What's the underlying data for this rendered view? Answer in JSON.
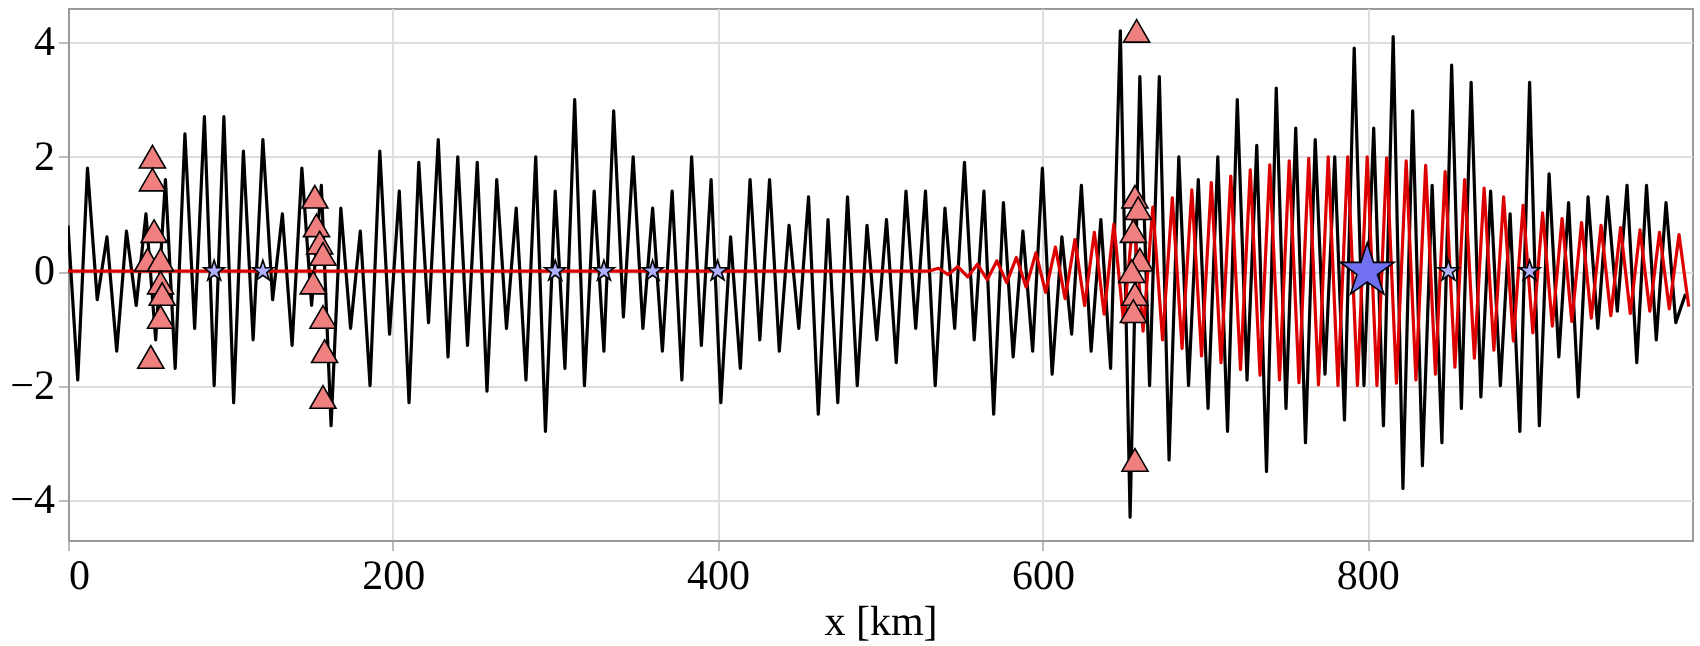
{
  "chart_data": {
    "type": "line",
    "xlabel": "x [km]",
    "xlim": [
      0,
      1000
    ],
    "ylim": [
      -4.7,
      4.6
    ],
    "xticks": [
      0,
      200,
      400,
      600,
      800
    ],
    "yticks": [
      -4,
      -2,
      0,
      2,
      4
    ],
    "grid": true,
    "line_style": "solid",
    "series": [
      {
        "color": "#000000",
        "x": [
          0,
          6,
          12,
          18,
          24,
          30,
          36,
          42,
          48,
          54,
          60,
          66,
          72,
          78,
          84,
          90,
          96,
          102,
          108,
          114,
          120,
          126,
          132,
          138,
          144,
          150,
          156,
          162,
          168,
          174,
          180,
          186,
          192,
          198,
          204,
          210,
          216,
          222,
          228,
          234,
          240,
          246,
          252,
          258,
          264,
          270,
          276,
          282,
          288,
          294,
          300,
          306,
          312,
          318,
          324,
          330,
          336,
          342,
          348,
          354,
          360,
          366,
          372,
          378,
          384,
          390,
          396,
          402,
          408,
          414,
          420,
          426,
          432,
          438,
          444,
          450,
          456,
          462,
          468,
          474,
          480,
          486,
          492,
          498,
          504,
          510,
          516,
          522,
          528,
          534,
          540,
          546,
          552,
          558,
          564,
          570,
          576,
          582,
          588,
          594,
          600,
          606,
          612,
          618,
          624,
          630,
          636,
          642,
          648,
          654,
          660,
          666,
          672,
          678,
          684,
          690,
          696,
          702,
          708,
          714,
          720,
          726,
          732,
          738,
          744,
          750,
          756,
          762,
          768,
          774,
          780,
          786,
          792,
          798,
          804,
          810,
          816,
          822,
          828,
          834,
          840,
          846,
          852,
          858,
          864,
          870,
          876,
          882,
          888,
          894,
          900,
          906,
          912,
          918,
          924,
          930,
          936,
          942,
          948,
          954,
          960,
          966,
          972,
          978,
          984,
          990,
          996
        ],
        "values": [
          0.8,
          -1.9,
          1.8,
          -0.5,
          0.6,
          -1.4,
          0.7,
          -0.6,
          1.0,
          -1.2,
          1.6,
          -1.7,
          2.4,
          -1.0,
          2.7,
          -2.0,
          2.7,
          -2.3,
          2.1,
          -1.2,
          2.3,
          -0.5,
          1.0,
          -1.3,
          1.8,
          -0.6,
          1.5,
          -2.7,
          1.1,
          -1.0,
          0.7,
          -2.0,
          2.1,
          -1.1,
          1.4,
          -2.3,
          1.9,
          -0.9,
          2.3,
          -1.5,
          2.0,
          -1.3,
          1.9,
          -2.1,
          1.6,
          -1.0,
          1.1,
          -1.9,
          2.0,
          -2.8,
          1.4,
          -1.7,
          3.0,
          -2.0,
          1.4,
          -1.4,
          2.8,
          -0.8,
          2.0,
          -1.0,
          1.1,
          -1.4,
          1.4,
          -1.9,
          2.0,
          -1.3,
          1.6,
          -2.3,
          0.6,
          -1.7,
          1.6,
          -1.2,
          1.6,
          -1.4,
          0.8,
          -1.0,
          1.3,
          -2.5,
          0.9,
          -2.3,
          1.3,
          -2.0,
          0.8,
          -1.2,
          0.9,
          -1.6,
          1.4,
          -1.0,
          1.4,
          -2.0,
          1.1,
          -1.0,
          1.9,
          -1.2,
          1.4,
          -2.5,
          1.2,
          -1.5,
          0.7,
          -1.4,
          1.8,
          -1.8,
          0.6,
          -1.1,
          1.5,
          -1.4,
          0.9,
          -1.7,
          4.2,
          -4.3,
          3.4,
          -2.0,
          3.4,
          -3.3,
          2.0,
          -2.0,
          1.6,
          -2.4,
          2.0,
          -2.8,
          3.0,
          -1.9,
          2.2,
          -3.5,
          3.2,
          -2.4,
          2.5,
          -3.0,
          2.3,
          -1.8,
          2.0,
          -2.6,
          3.9,
          -2.0,
          2.5,
          -2.7,
          4.1,
          -3.8,
          2.8,
          -3.4,
          1.5,
          -3.0,
          3.6,
          -2.4,
          3.3,
          -2.2,
          1.4,
          -2.0,
          1.0,
          -2.8,
          3.3,
          -2.7,
          1.7,
          -1.5,
          1.2,
          -2.2,
          1.3,
          -1.0,
          1.3,
          -0.7,
          1.5,
          -1.6,
          1.5,
          -1.2,
          1.2,
          -0.9,
          -0.4
        ]
      },
      {
        "color": "#dd0000",
        "x": [
          0,
          530,
          536,
          542,
          548,
          554,
          560,
          566,
          572,
          578,
          584,
          590,
          596,
          602,
          608,
          614,
          620,
          626,
          632,
          638,
          644,
          650,
          656,
          662,
          668,
          674,
          680,
          686,
          692,
          698,
          704,
          710,
          716,
          722,
          728,
          734,
          740,
          746,
          752,
          758,
          764,
          770,
          776,
          782,
          788,
          794,
          800,
          806,
          812,
          818,
          824,
          830,
          836,
          842,
          848,
          854,
          860,
          866,
          872,
          878,
          884,
          890,
          896,
          902,
          908,
          914,
          920,
          926,
          932,
          938,
          944,
          950,
          956,
          962,
          968,
          974,
          980,
          986,
          992,
          998
        ],
        "values": [
          0,
          0,
          0.05,
          -0.06,
          0.08,
          -0.1,
          0.12,
          -0.15,
          0.18,
          -0.2,
          0.24,
          -0.28,
          0.32,
          -0.37,
          0.42,
          -0.48,
          0.55,
          -0.6,
          0.68,
          -0.75,
          0.82,
          -0.9,
          0.98,
          -1.05,
          1.12,
          -1.2,
          1.28,
          -1.35,
          1.42,
          -1.48,
          1.55,
          -1.6,
          1.66,
          -1.72,
          1.77,
          -1.82,
          1.86,
          -1.9,
          1.93,
          -1.95,
          1.97,
          -1.99,
          2.0,
          -2.0,
          2.0,
          -2.0,
          2.0,
          -2.0,
          1.98,
          -1.96,
          1.93,
          -1.9,
          1.85,
          -1.8,
          1.74,
          -1.68,
          1.6,
          -1.52,
          1.45,
          -1.38,
          1.3,
          -1.22,
          1.15,
          -1.08,
          1.02,
          -0.96,
          0.92,
          -0.88,
          0.85,
          -0.82,
          0.8,
          -0.78,
          0.76,
          -0.74,
          0.72,
          -0.7,
          0.68,
          -0.66,
          0.64,
          -0.62
        ]
      },
      {
        "type": "scatter",
        "marker": "triangle",
        "color": "#f08080",
        "x": [
          52,
          52,
          53,
          49,
          51,
          57,
          57,
          58,
          57,
          152,
          153,
          155,
          157,
          151,
          157,
          158,
          157,
          658,
          657,
          659,
          656,
          660,
          655,
          657,
          656,
          657
        ],
        "values": [
          2.0,
          1.6,
          0.7,
          0.2,
          -1.5,
          0.2,
          -0.2,
          -0.4,
          -0.8,
          1.3,
          0.8,
          0.5,
          0.3,
          -0.2,
          -0.8,
          -1.4,
          -2.2,
          4.2,
          1.3,
          1.1,
          0.7,
          0.2,
          0,
          -0.4,
          -0.7,
          -3.3
        ]
      },
      {
        "type": "bubble",
        "marker": "star",
        "colors": [
          "#b0b0ff",
          "#b0b0ff",
          "#b0b0ff",
          "#b0b0ff",
          "#b0b0ff",
          "#b0b0ff",
          "#7070f0",
          "#b0b0ff",
          "#b0b0ff"
        ],
        "x": [
          90,
          120,
          300,
          330,
          360,
          400,
          800,
          850,
          900
        ],
        "values": [
          0,
          0,
          0,
          0,
          0,
          0,
          0,
          0,
          0
        ],
        "sizes": [
          0.15,
          0.15,
          0.15,
          0.15,
          0.15,
          0.15,
          1,
          0.15,
          0.15
        ]
      }
    ]
  }
}
